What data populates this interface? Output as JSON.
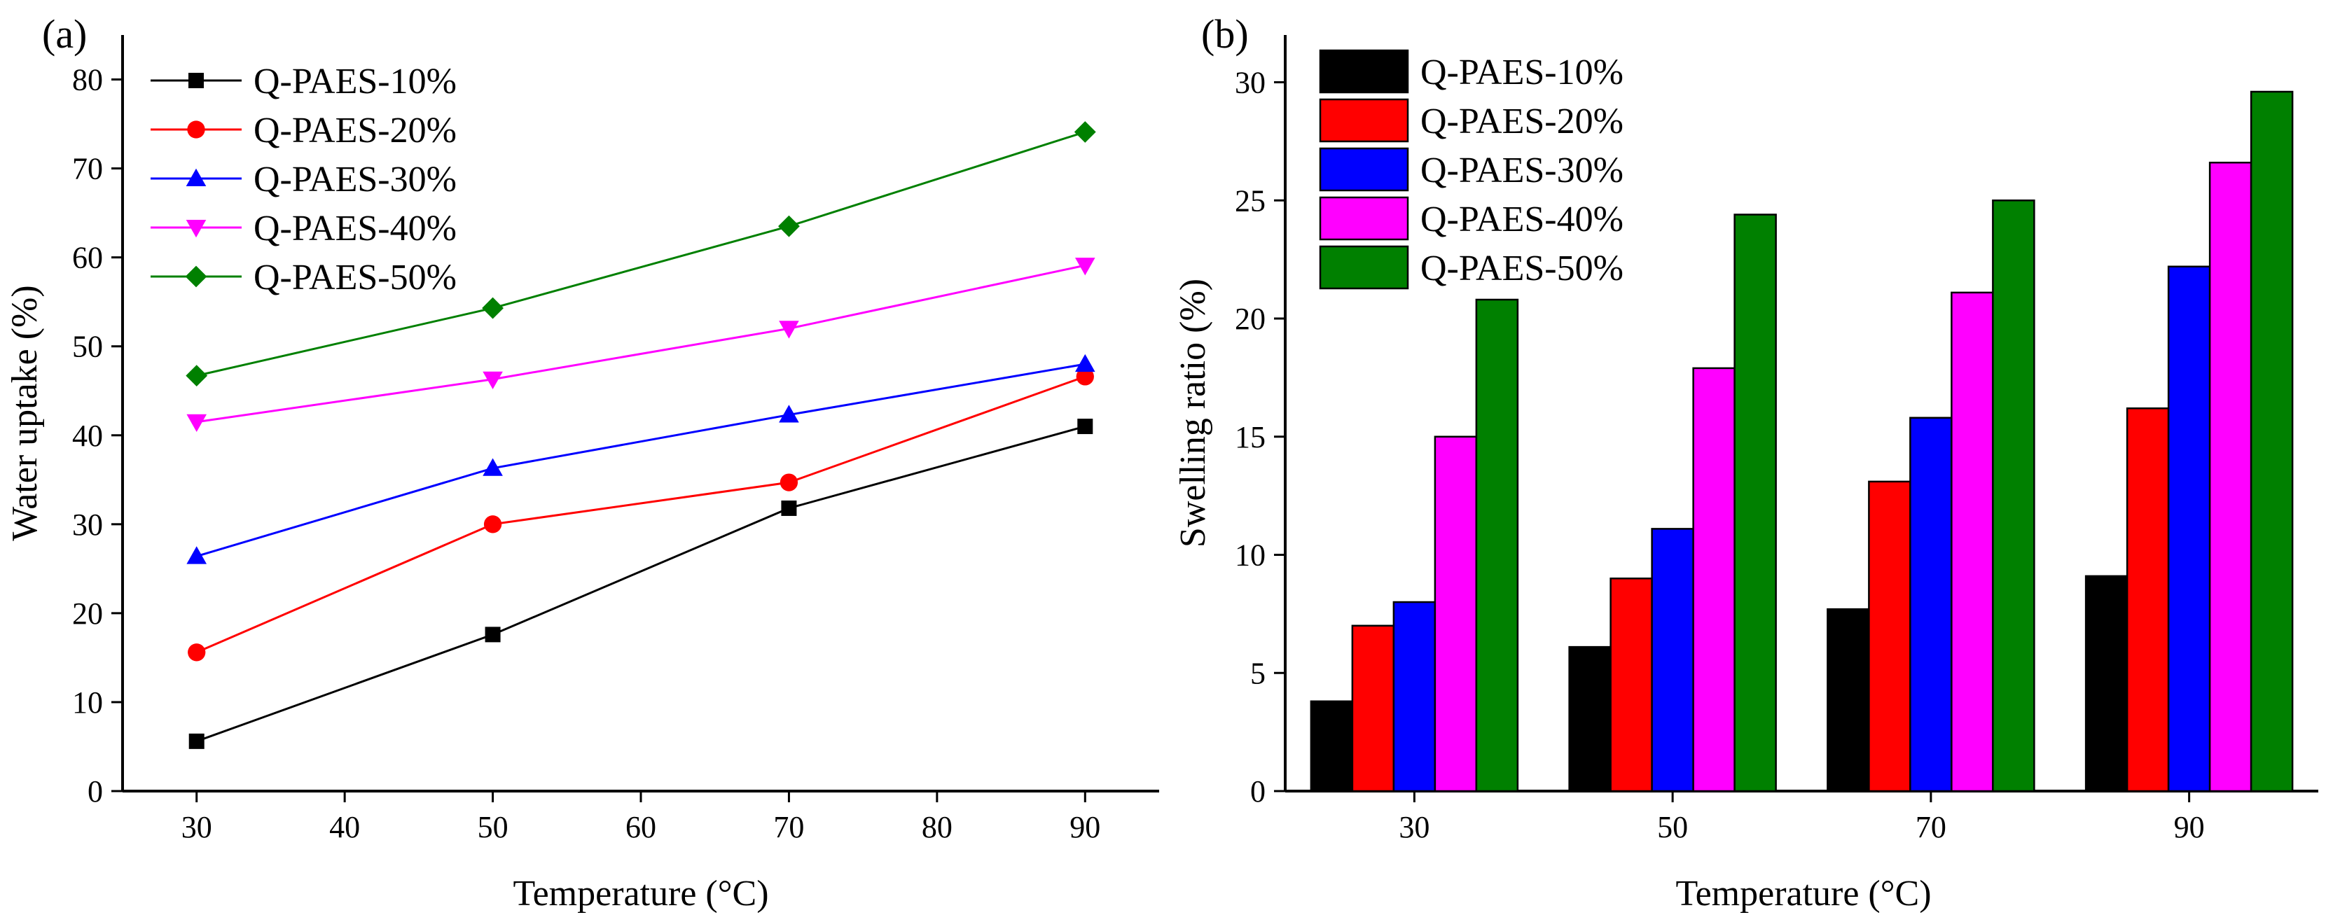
{
  "figure": {
    "panels": [
      "(a)",
      "(b)"
    ]
  },
  "colors": {
    "Q-PAES-10%": "#000000",
    "Q-PAES-20%": "#ff0000",
    "Q-PAES-30%": "#0000ff",
    "Q-PAES-40%": "#ff00ff",
    "Q-PAES-50%": "#008000"
  },
  "chart_data": [
    {
      "type": "line",
      "panel": "(a)",
      "title": "",
      "xlabel": "Temperature (°C)",
      "ylabel": "Water uptake (%)",
      "xlim": [
        25,
        95
      ],
      "ylim": [
        0,
        85
      ],
      "xticks": [
        30,
        40,
        50,
        60,
        70,
        80,
        90
      ],
      "yticks": [
        0,
        10,
        20,
        30,
        40,
        50,
        60,
        70,
        80
      ],
      "x": [
        30,
        50,
        70,
        90
      ],
      "legend_position": "top-left",
      "series": [
        {
          "name": "Q-PAES-10%",
          "marker": "square",
          "values": [
            5.6,
            17.6,
            31.8,
            41.0
          ]
        },
        {
          "name": "Q-PAES-20%",
          "marker": "circle",
          "values": [
            15.6,
            30.0,
            34.7,
            46.6
          ]
        },
        {
          "name": "Q-PAES-30%",
          "marker": "triangle-up",
          "values": [
            26.4,
            36.3,
            42.3,
            48.0
          ]
        },
        {
          "name": "Q-PAES-40%",
          "marker": "triangle-down",
          "values": [
            41.5,
            46.3,
            52.0,
            59.1
          ]
        },
        {
          "name": "Q-PAES-50%",
          "marker": "diamond",
          "values": [
            46.7,
            54.3,
            63.5,
            74.1
          ]
        }
      ]
    },
    {
      "type": "bar",
      "panel": "(b)",
      "title": "",
      "xlabel": "Temperature (°C)",
      "ylabel": "Swelling ratio (%)",
      "ylim": [
        0,
        32
      ],
      "yticks": [
        0,
        5,
        10,
        15,
        20,
        25,
        30
      ],
      "categories": [
        "30",
        "50",
        "70",
        "90"
      ],
      "legend_position": "top-left",
      "series": [
        {
          "name": "Q-PAES-10%",
          "values": [
            3.8,
            6.1,
            7.7,
            9.1
          ]
        },
        {
          "name": "Q-PAES-20%",
          "values": [
            7.0,
            9.0,
            13.1,
            16.2
          ]
        },
        {
          "name": "Q-PAES-30%",
          "values": [
            8.0,
            11.1,
            15.8,
            22.2
          ]
        },
        {
          "name": "Q-PAES-40%",
          "values": [
            15.0,
            17.9,
            21.1,
            26.6
          ]
        },
        {
          "name": "Q-PAES-50%",
          "values": [
            20.8,
            24.4,
            25.0,
            29.6
          ]
        }
      ]
    }
  ]
}
